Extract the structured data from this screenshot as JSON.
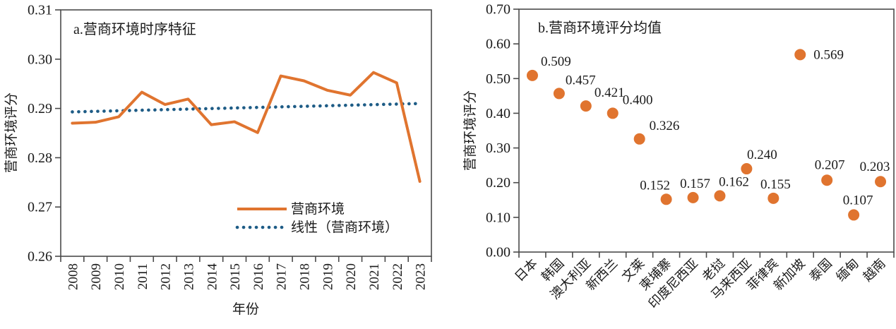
{
  "figure": {
    "background": "#ffffff",
    "text_color": "#1a1a1a",
    "axis_color": "#4a4a4a"
  },
  "chart_data": [
    {
      "type": "line",
      "title": "a.营商环境时序特征",
      "xlabel": "年份",
      "ylabel": "营商环境评分",
      "ylim": [
        0.26,
        0.31
      ],
      "ytick_step": 0.01,
      "ytick_decimals": 2,
      "grid": false,
      "legend_position": "inside-bottom-right",
      "categories": [
        "2008",
        "2009",
        "2010",
        "2011",
        "2012",
        "2013",
        "2014",
        "2015",
        "2016",
        "2017",
        "2018",
        "2019",
        "2020",
        "2021",
        "2022",
        "2023"
      ],
      "series": [
        {
          "name": "营商环境",
          "style": "solid",
          "color": "#E0742F",
          "values": [
            0.287,
            0.2872,
            0.2883,
            0.2933,
            0.2908,
            0.2919,
            0.2867,
            0.2873,
            0.2851,
            0.2966,
            0.2956,
            0.2937,
            0.2927,
            0.2973,
            0.2952,
            0.2752
          ]
        },
        {
          "name": "线性（营商环境）",
          "style": "dotted",
          "color": "#1E5C86",
          "trend_endpoints": [
            0.2893,
            0.291
          ]
        }
      ]
    },
    {
      "type": "scatter",
      "title": "b.营商环境评分均值",
      "xlabel": "",
      "ylabel": "营商环境评分",
      "ylim": [
        0.0,
        0.7
      ],
      "ytick_step": 0.1,
      "ytick_decimals": 2,
      "grid": false,
      "marker_color": "#E0742F",
      "categories": [
        "日本",
        "韩国",
        "澳大利亚",
        "新西兰",
        "文莱",
        "柬埔寨",
        "印度尼西亚",
        "老挝",
        "马来西亚",
        "菲律宾",
        "新加坡",
        "泰国",
        "缅甸",
        "越南"
      ],
      "values": [
        0.509,
        0.457,
        0.421,
        0.4,
        0.326,
        0.152,
        0.157,
        0.162,
        0.24,
        0.155,
        0.569,
        0.207,
        0.107,
        0.203
      ],
      "point_labels": [
        "0.509",
        "0.457",
        "0.421",
        "0.400",
        "0.326",
        "0.152",
        "0.157",
        "0.162",
        "0.240",
        "0.155",
        "0.569",
        "0.207",
        "0.107",
        "0.203"
      ],
      "label_offsets": [
        [
          12,
          -14,
          "start"
        ],
        [
          9,
          -13,
          "start"
        ],
        [
          12,
          -13,
          "start"
        ],
        [
          14,
          -13,
          "start"
        ],
        [
          14,
          -13,
          "start"
        ],
        [
          -16,
          -14,
          "middle"
        ],
        [
          3,
          -14,
          "middle"
        ],
        [
          20,
          -14,
          "middle"
        ],
        [
          22,
          -14,
          "middle"
        ],
        [
          3,
          -14,
          "middle"
        ],
        [
          19,
          6,
          "start"
        ],
        [
          4,
          -16,
          "middle"
        ],
        [
          6,
          -15,
          "middle"
        ],
        [
          -8,
          -15,
          "middle"
        ]
      ]
    }
  ]
}
